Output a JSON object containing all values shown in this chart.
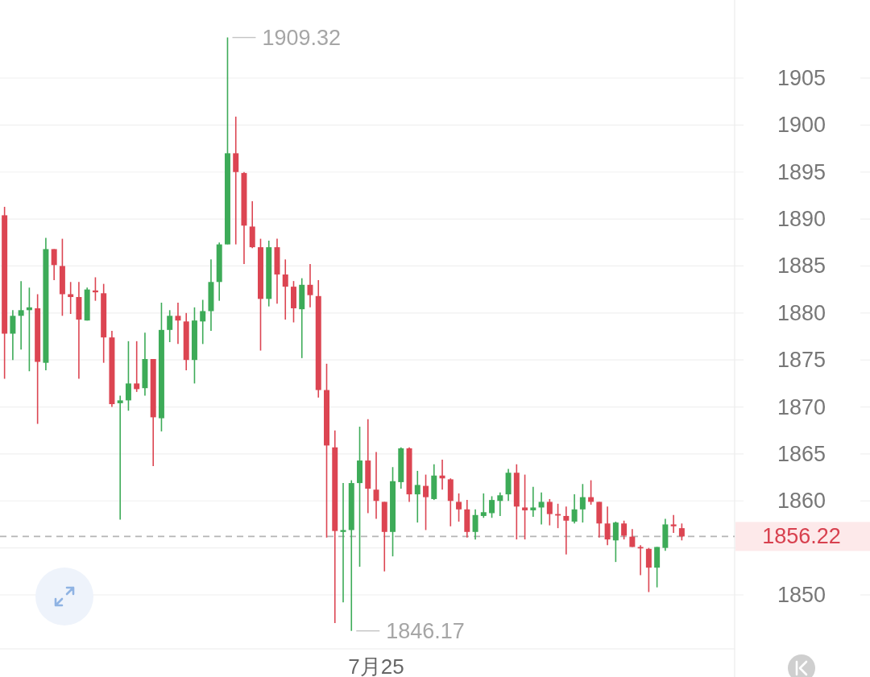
{
  "chart_data": {
    "type": "candlestick",
    "categories": [
      null,
      null,
      null,
      null,
      null,
      null,
      null,
      null,
      null,
      null,
      null,
      null,
      null,
      null,
      null,
      null,
      null,
      null,
      null,
      null,
      null,
      null,
      null,
      null,
      null,
      null,
      null,
      null,
      null,
      null,
      null,
      null,
      null,
      null,
      null,
      null,
      null,
      null,
      null,
      null,
      null,
      null,
      null,
      null,
      null,
      "7月25",
      null,
      null,
      null,
      null,
      null,
      null,
      null,
      null,
      null,
      null,
      null,
      null,
      null,
      null,
      null,
      null,
      null,
      null,
      null,
      null,
      null,
      null,
      null,
      null,
      null,
      null,
      null,
      null,
      null,
      null,
      null,
      null,
      null,
      null,
      null,
      null,
      null
    ],
    "ohlc": [
      [
        1890.4,
        1891.3,
        1873.0,
        1877.8
      ],
      [
        1877.8,
        1880.3,
        1875.0,
        1879.7
      ],
      [
        1879.7,
        1883.4,
        1876.1,
        1880.3
      ],
      [
        1880.3,
        1882.7,
        1873.8,
        1880.6
      ],
      [
        1880.5,
        1882.0,
        1868.2,
        1874.8
      ],
      [
        1874.7,
        1888.0,
        1873.9,
        1886.8
      ],
      [
        1886.8,
        1886.8,
        1883.5,
        1885.1
      ],
      [
        1885.0,
        1887.9,
        1879.7,
        1882.0
      ],
      [
        1882.0,
        1883.3,
        1879.9,
        1881.7
      ],
      [
        1881.7,
        1883.3,
        1873.0,
        1879.3
      ],
      [
        1879.2,
        1882.7,
        1879.2,
        1882.5
      ],
      [
        1882.4,
        1883.8,
        1881.3,
        1882.2
      ],
      [
        1882.1,
        1883.1,
        1874.7,
        1877.4
      ],
      [
        1877.4,
        1878.1,
        1870.0,
        1870.3
      ],
      [
        1870.4,
        1871.2,
        1858.0,
        1870.7
      ],
      [
        1870.7,
        1877.0,
        1869.6,
        1872.5
      ],
      [
        1872.5,
        1877.0,
        1871.6,
        1871.9
      ],
      [
        1872.0,
        1877.9,
        1871.2,
        1875.1
      ],
      [
        1875.1,
        1875.1,
        1863.7,
        1868.9
      ],
      [
        1868.8,
        1881.1,
        1867.4,
        1878.2
      ],
      [
        1878.2,
        1880.3,
        1876.9,
        1879.7
      ],
      [
        1879.7,
        1881.1,
        1876.7,
        1879.2
      ],
      [
        1879.1,
        1880.0,
        1873.9,
        1875.0
      ],
      [
        1875.0,
        1880.6,
        1872.5,
        1879.2
      ],
      [
        1879.1,
        1881.4,
        1876.7,
        1880.2
      ],
      [
        1880.2,
        1885.7,
        1878.1,
        1883.3
      ],
      [
        1883.3,
        1887.5,
        1881.3,
        1887.3
      ],
      [
        1887.3,
        1909.32,
        1887.3,
        1897.0
      ],
      [
        1897.0,
        1900.9,
        1887.3,
        1895.0
      ],
      [
        1894.9,
        1895.0,
        1885.2,
        1889.3
      ],
      [
        1889.2,
        1891.9,
        1886.9,
        1887.0
      ],
      [
        1887.0,
        1887.9,
        1876.0,
        1881.5
      ],
      [
        1881.5,
        1887.7,
        1880.7,
        1887.0
      ],
      [
        1887.0,
        1887.9,
        1881.0,
        1884.1
      ],
      [
        1884.1,
        1885.7,
        1879.3,
        1882.8
      ],
      [
        1882.8,
        1883.4,
        1879.0,
        1880.5
      ],
      [
        1880.4,
        1883.7,
        1875.2,
        1883.0
      ],
      [
        1883.0,
        1885.2,
        1880.6,
        1881.9
      ],
      [
        1881.8,
        1883.5,
        1871.0,
        1871.8
      ],
      [
        1871.8,
        1874.6,
        1856.1,
        1865.9
      ],
      [
        1865.7,
        1867.5,
        1847.0,
        1856.8
      ],
      [
        1856.7,
        1861.9,
        1849.2,
        1856.9
      ],
      [
        1856.9,
        1862.2,
        1846.17,
        1861.9
      ],
      [
        1861.9,
        1867.9,
        1853.0,
        1864.3
      ],
      [
        1864.3,
        1868.7,
        1858.7,
        1861.3
      ],
      [
        1861.2,
        1865.2,
        1858.1,
        1860.0
      ],
      [
        1859.9,
        1859.9,
        1852.5,
        1856.7
      ],
      [
        1856.7,
        1863.6,
        1854.1,
        1862.1
      ],
      [
        1862.0,
        1865.7,
        1861.3,
        1865.6
      ],
      [
        1865.6,
        1865.7,
        1859.9,
        1860.7
      ],
      [
        1860.7,
        1863.2,
        1857.7,
        1861.7
      ],
      [
        1861.6,
        1862.8,
        1856.9,
        1860.4
      ],
      [
        1860.2,
        1863.9,
        1860.1,
        1862.7
      ],
      [
        1862.7,
        1864.4,
        1861.2,
        1862.4
      ],
      [
        1862.3,
        1862.4,
        1857.3,
        1860.0
      ],
      [
        1859.9,
        1860.8,
        1857.8,
        1859.1
      ],
      [
        1859.1,
        1860.1,
        1856.1,
        1856.7
      ],
      [
        1856.7,
        1859.1,
        1855.9,
        1858.5
      ],
      [
        1858.4,
        1860.8,
        1858.2,
        1858.8
      ],
      [
        1858.7,
        1860.5,
        1858.2,
        1860.1
      ],
      [
        1860.0,
        1860.9,
        1858.4,
        1860.6
      ],
      [
        1860.7,
        1863.4,
        1860.0,
        1863.0
      ],
      [
        1863.0,
        1863.9,
        1855.9,
        1859.4
      ],
      [
        1859.3,
        1862.8,
        1855.9,
        1859.0
      ],
      [
        1859.0,
        1861.5,
        1858.3,
        1859.3
      ],
      [
        1859.3,
        1860.9,
        1857.5,
        1859.9
      ],
      [
        1859.9,
        1860.2,
        1857.4,
        1858.6
      ],
      [
        1858.6,
        1859.7,
        1857.1,
        1858.5
      ],
      [
        1858.4,
        1859.4,
        1854.3,
        1857.9
      ],
      [
        1857.8,
        1860.7,
        1857.6,
        1859.1
      ],
      [
        1859.1,
        1861.8,
        1857.7,
        1860.4
      ],
      [
        1860.4,
        1862.2,
        1859.6,
        1859.9
      ],
      [
        1859.9,
        1859.9,
        1856.1,
        1857.6
      ],
      [
        1857.6,
        1859.4,
        1855.3,
        1855.9
      ],
      [
        1855.8,
        1857.8,
        1853.5,
        1857.7
      ],
      [
        1857.6,
        1857.9,
        1855.9,
        1856.3
      ],
      [
        1856.2,
        1857.0,
        1855.1,
        1855.1
      ],
      [
        1855.1,
        1855.3,
        1852.1,
        1855.0
      ],
      [
        1854.9,
        1855.0,
        1850.3,
        1852.9
      ],
      [
        1852.9,
        1855.1,
        1850.8,
        1855.1
      ],
      [
        1855.0,
        1858.1,
        1854.7,
        1857.5
      ],
      [
        1857.5,
        1858.5,
        1856.6,
        1857.3
      ],
      [
        1857.1,
        1857.6,
        1855.8,
        1856.22
      ]
    ],
    "colors": [
      "#dc4552",
      "#3dab58",
      "#3dab58",
      "#3dab58",
      "#dc4552",
      "#3dab58",
      "#dc4552",
      "#dc4552",
      "#dc4552",
      "#dc4552",
      "#3dab58",
      "#dc4552",
      "#dc4552",
      "#dc4552",
      "#3dab58",
      "#3dab58",
      "#dc4552",
      "#3dab58",
      "#dc4552",
      "#3dab58",
      "#3dab58",
      "#dc4552",
      "#dc4552",
      "#3dab58",
      "#3dab58",
      "#3dab58",
      "#3dab58",
      "#3dab58",
      "#dc4552",
      "#dc4552",
      "#dc4552",
      "#dc4552",
      "#3dab58",
      "#dc4552",
      "#dc4552",
      "#dc4552",
      "#3dab58",
      "#dc4552",
      "#dc4552",
      "#dc4552",
      "#dc4552",
      "#3dab58",
      "#3dab58",
      "#3dab58",
      "#dc4552",
      "#dc4552",
      "#dc4552",
      "#3dab58",
      "#3dab58",
      "#dc4552",
      "#3dab58",
      "#dc4552",
      "#3dab58",
      "#dc4552",
      "#dc4552",
      "#dc4552",
      "#dc4552",
      "#3dab58",
      "#3dab58",
      "#3dab58",
      "#3dab58",
      "#3dab58",
      "#dc4552",
      "#dc4552",
      "#3dab58",
      "#3dab58",
      "#dc4552",
      "#dc4552",
      "#dc4552",
      "#3dab58",
      "#3dab58",
      "#dc4552",
      "#dc4552",
      "#dc4552",
      "#3dab58",
      "#dc4552",
      "#dc4552",
      "#dc4552",
      "#dc4552",
      "#3dab58",
      "#3dab58",
      "#dc4552",
      "#dc4552"
    ],
    "ylim": [
      1844.26,
      1913.31
    ],
    "yticks": [
      1850,
      {
        "value": 1855,
        "label": null
      },
      1860,
      1865,
      1870,
      1875,
      1880,
      1885,
      1890,
      1895,
      1900,
      1905
    ],
    "grid": "y",
    "ref_lines": [
      {
        "axis": "y",
        "value": 1856.22,
        "label": "1856.22",
        "color": "#b5b5b5",
        "line_style": "dashed"
      }
    ],
    "annotations": [
      "1909.32",
      "1846.17"
    ]
  }
}
